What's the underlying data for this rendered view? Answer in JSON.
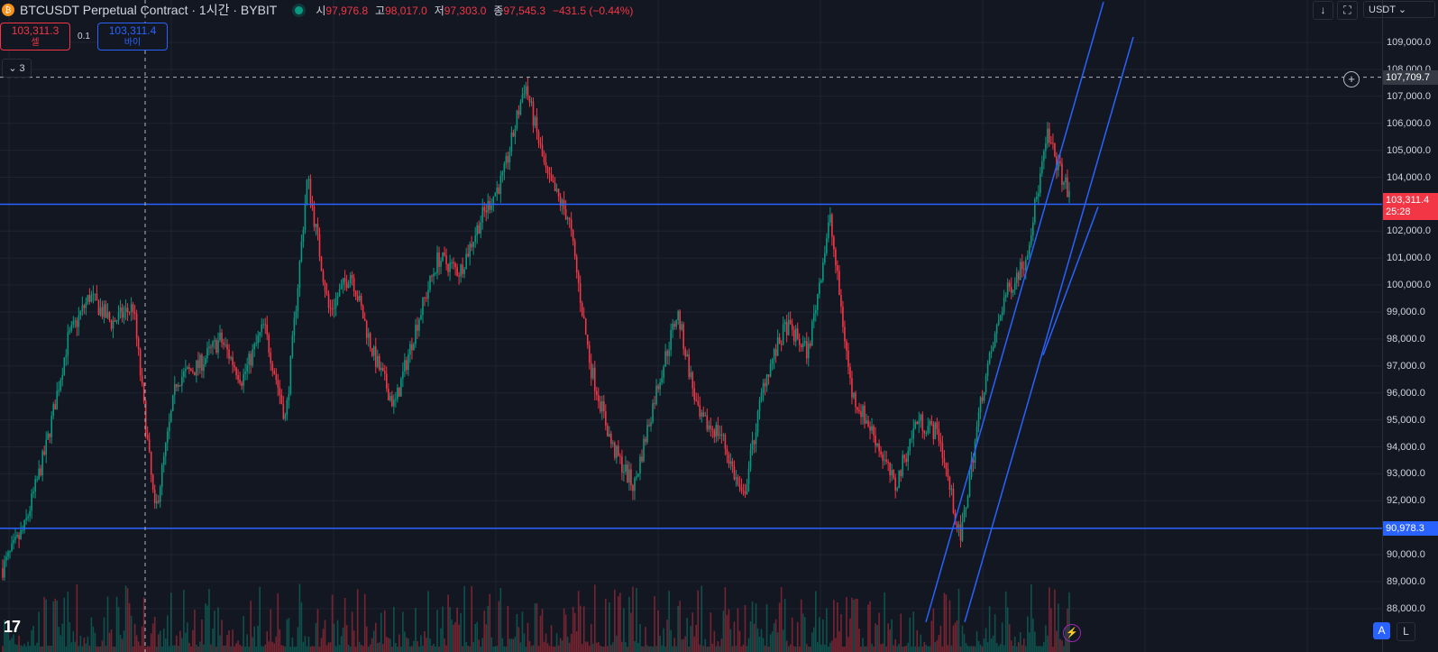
{
  "header": {
    "symbol_icon": "bitcoin-icon",
    "title": "BTCUSDT Perpetual Contract · 1시간 · BYBIT",
    "status": "market-open",
    "ohlc": [
      {
        "label": "시",
        "value": "97,976.8"
      },
      {
        "label": "고",
        "value": "98,017.0"
      },
      {
        "label": "저",
        "value": "97,303.0"
      },
      {
        "label": "종",
        "value": "97,545.3"
      }
    ],
    "change": "−431.5 (−0.44%)"
  },
  "trade": {
    "sell_price": "103,311.3",
    "sell_label": "셀",
    "spread": "0.1",
    "buy_price": "103,311.4",
    "buy_label": "바이"
  },
  "indicators": {
    "count": "3"
  },
  "toolbar": {
    "currency": "USDT"
  },
  "bottom": {
    "auto_label": "A",
    "log_label": "L"
  },
  "colors": {
    "up": "#089981",
    "down": "#f23645",
    "line": "#2962ff",
    "bg": "#131722"
  },
  "chart_data": {
    "type": "candlestick",
    "y_axis_ticks": [
      "109,000.0",
      "108,000.0",
      "107,000.0",
      "106,000.0",
      "105,000.0",
      "104,000.0",
      "103,000.0",
      "102,000.0",
      "101,000.0",
      "100,000.0",
      "99,000.0",
      "98,000.0",
      "97,000.0",
      "96,000.0",
      "95,000.0",
      "94,000.0",
      "93,000.0",
      "92,000.0",
      "91,000.0",
      "90,000.0",
      "89,000.0",
      "88,000.0"
    ],
    "ylim": [
      87500,
      110500
    ],
    "current_price": "103,311.4",
    "countdown": "25:28",
    "horizontal_lines": [
      {
        "price": 102996,
        "label": ""
      },
      {
        "price": 90978.3,
        "label": "90,978.3"
      }
    ],
    "crosshair_price": "107,709.7",
    "trend_channel_line_endpoints_price": [
      [
        87500,
        110500
      ],
      [
        87500,
        109200
      ],
      [
        97400,
        102900
      ]
    ],
    "price_path": [
      89500,
      91000,
      94000,
      98000,
      99600,
      98600,
      99200,
      91500,
      96500,
      97000,
      98000,
      96500,
      98500,
      95000,
      104000,
      99000,
      100500,
      97500,
      95500,
      98500,
      101000,
      100500,
      102500,
      104000,
      107500,
      104000,
      102500,
      97000,
      94000,
      92500,
      96000,
      99000,
      95000,
      94500,
      92000,
      96500,
      98500,
      97500,
      102500,
      96000,
      94500,
      92500,
      95000,
      94500,
      90500,
      96000,
      99500,
      101000,
      105500,
      103300
    ]
  }
}
